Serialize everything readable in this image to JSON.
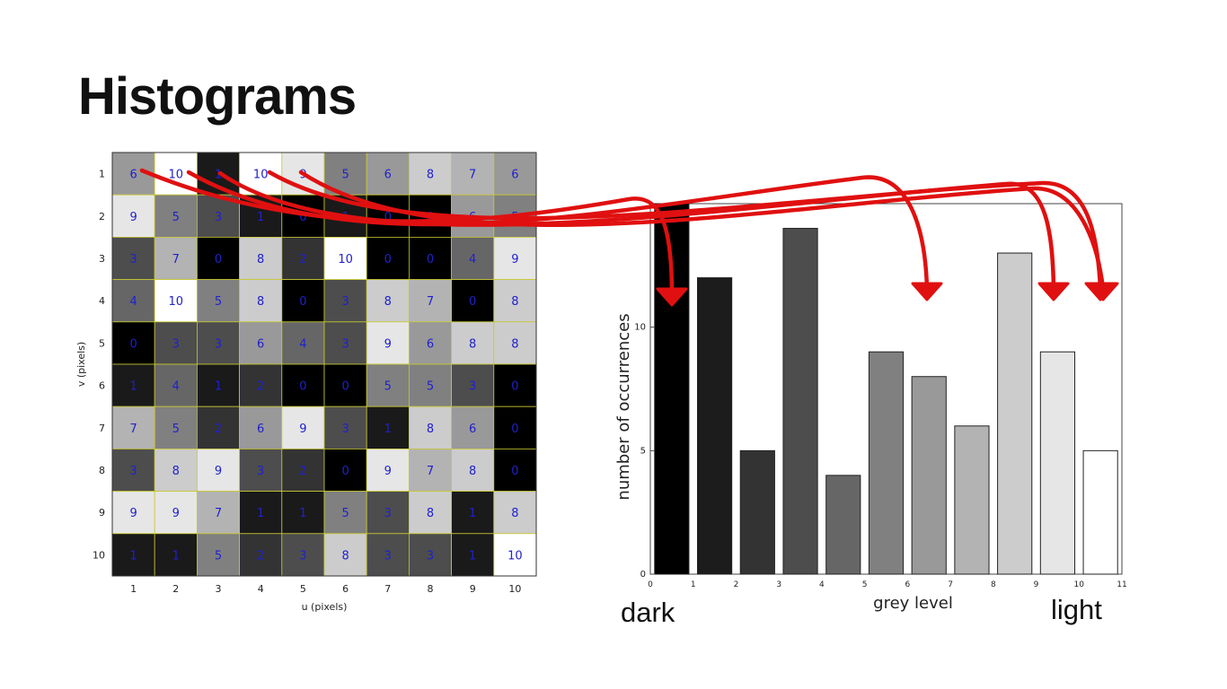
{
  "slide": {
    "title": "Histograms",
    "dark_label": "dark",
    "light_label": "light"
  },
  "pixel_grid": {
    "xlabel": "u (pixels)",
    "ylabel": "v (pixels)",
    "u_ticks": [
      "1",
      "2",
      "3",
      "4",
      "5",
      "6",
      "7",
      "8",
      "9",
      "10"
    ],
    "v_ticks": [
      "1",
      "2",
      "3",
      "4",
      "5",
      "6",
      "7",
      "8",
      "9",
      "10"
    ],
    "max_level": 10,
    "cell_border_color": "#c8c832",
    "number_color": "#2020d0",
    "values": [
      [
        6,
        10,
        1,
        10,
        9,
        5,
        6,
        8,
        7,
        6
      ],
      [
        9,
        5,
        3,
        1,
        0,
        1,
        0,
        0,
        6,
        5
      ],
      [
        3,
        7,
        0,
        8,
        2,
        10,
        0,
        0,
        4,
        9
      ],
      [
        4,
        10,
        5,
        8,
        0,
        3,
        8,
        7,
        0,
        8
      ],
      [
        0,
        3,
        3,
        6,
        4,
        3,
        9,
        6,
        8,
        8
      ],
      [
        1,
        4,
        1,
        2,
        0,
        0,
        5,
        5,
        3,
        0
      ],
      [
        7,
        5,
        2,
        6,
        9,
        3,
        1,
        8,
        6,
        0
      ],
      [
        3,
        8,
        9,
        3,
        2,
        0,
        9,
        7,
        8,
        0
      ],
      [
        9,
        9,
        7,
        1,
        1,
        5,
        3,
        8,
        1,
        8
      ],
      [
        1,
        1,
        5,
        2,
        3,
        8,
        3,
        3,
        1,
        10
      ]
    ]
  },
  "chart_data": {
    "type": "bar",
    "xlabel": "grey level",
    "ylabel": "number of occurrences",
    "categories": [
      "0",
      "1",
      "2",
      "3",
      "4",
      "5",
      "6",
      "7",
      "8",
      "9",
      "10"
    ],
    "values": [
      15,
      12,
      5,
      14,
      4,
      9,
      8,
      6,
      13,
      9,
      5
    ],
    "ylim": [
      0,
      15
    ],
    "xlim": [
      0,
      11
    ],
    "x_ticks": [
      "0",
      "1",
      "2",
      "3",
      "4",
      "5",
      "6",
      "7",
      "8",
      "9",
      "10",
      "11"
    ],
    "y_ticks": [
      "0",
      "5",
      "10"
    ],
    "bar_colors": [
      "#000000",
      "#1c1c1c",
      "#333333",
      "#4d4d4d",
      "#666666",
      "#808080",
      "#999999",
      "#b3b3b3",
      "#cccccc",
      "#e6e6e6",
      "#ffffff"
    ],
    "arrow_color": "#e01010"
  }
}
